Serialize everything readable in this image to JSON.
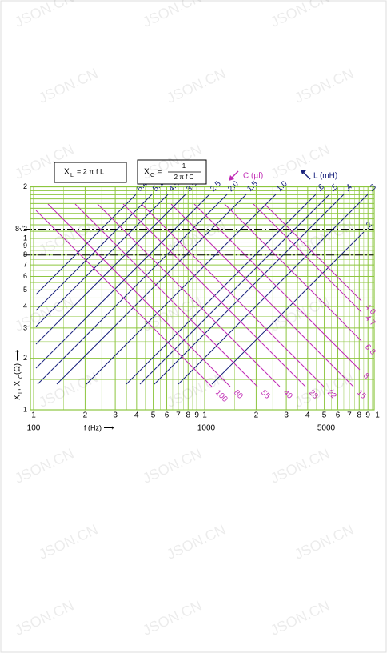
{
  "formula_l": {
    "symbol": "X",
    "sub": "L",
    "expr": "= 2 π f L"
  },
  "formula_c": {
    "symbol": "X",
    "sub": "C",
    "eq": "=",
    "num": "1",
    "den": "2 π f C"
  },
  "legend_c": "C  (µf)",
  "legend_l": "L  (mH)",
  "y_ticks": [
    "2",
    "8√2",
    "1",
    "9",
    "8",
    "7",
    "6",
    "5",
    "4",
    "3",
    "2",
    "1"
  ],
  "x_ticks": [
    "1",
    "2",
    "3",
    "4",
    "5",
    "6",
    "7",
    "8",
    "9",
    "1",
    "2",
    "3",
    "4",
    "5",
    "6",
    "7",
    "8",
    "9",
    "1"
  ],
  "x_decades": [
    "100",
    "1000",
    "5000"
  ],
  "x_label": "f (Hz)  ⟶",
  "y_label": {
    "symbol": "X",
    "sub1": "L",
    "mid": ", X",
    "sub2": "C",
    "unit": " (Ω)  ⟶"
  },
  "l_labels": [
    "6.4",
    "5.1",
    "4.5",
    "3.5",
    "2.5",
    "2.0",
    "1.5",
    "1.0",
    ".6",
    ".5",
    ".4",
    ".3",
    ".2"
  ],
  "c_labels": [
    "100",
    "80",
    "55",
    "40",
    "28",
    "22",
    "15",
    "8",
    "6.8",
    "4.7",
    "4.0"
  ],
  "watermark": "JSON.CN"
}
